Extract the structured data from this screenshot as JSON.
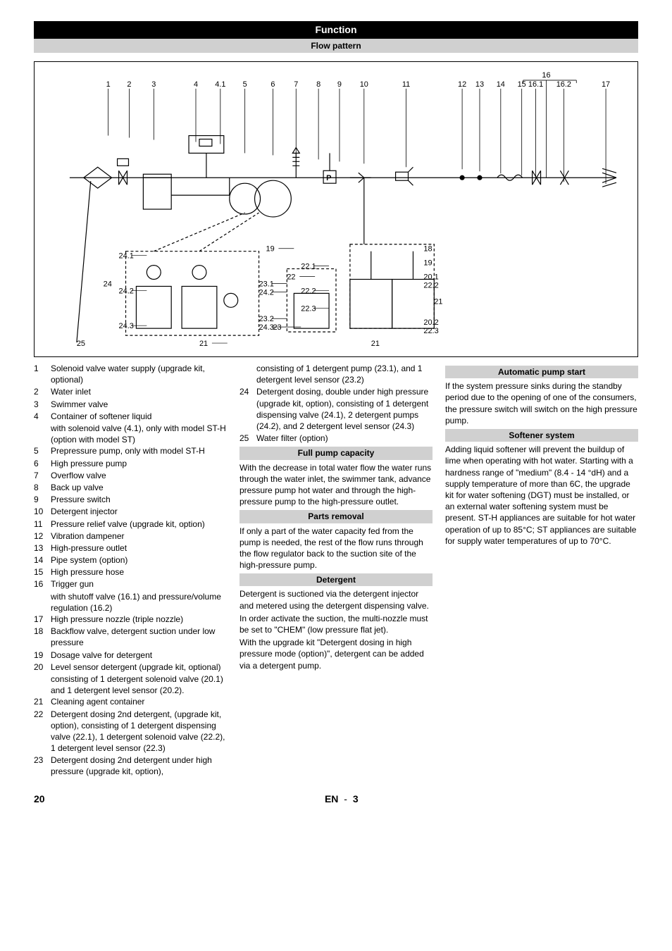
{
  "header": {
    "title": "Function",
    "subtitle": "Flow pattern"
  },
  "diagram": {
    "top_labels": [
      "1",
      "2",
      "3",
      "4",
      "4.1",
      "5",
      "6",
      "7",
      "8",
      "9",
      "10",
      "11",
      "12",
      "13",
      "14",
      "15",
      "16",
      "16.1",
      "16.2",
      "17"
    ],
    "left_labels": [
      "24",
      "24.1",
      "24.2",
      "24.3",
      "25"
    ],
    "mid_labels": [
      "19",
      "21",
      "22",
      "22.1",
      "22.2",
      "22.3",
      "23",
      "23.1",
      "23.2",
      "24.2",
      "24.3"
    ],
    "right_labels": [
      "18",
      "19",
      "20.1",
      "20.2",
      "21",
      "22.2",
      "22.3"
    ],
    "p_box": "P"
  },
  "legend_left": [
    {
      "n": "1",
      "t": "Solenoid valve water supply (upgrade kit, optional)"
    },
    {
      "n": "2",
      "t": "Water inlet"
    },
    {
      "n": "3",
      "t": "Swimmer valve"
    },
    {
      "n": "4",
      "t": "Container of softener liquid",
      "sub": "with solenoid valve (4.1), only with model ST-H (option with model ST)"
    },
    {
      "n": "5",
      "t": "Prepressure pump, only with model ST-H"
    },
    {
      "n": "6",
      "t": "High pressure pump"
    },
    {
      "n": "7",
      "t": "Overflow valve"
    },
    {
      "n": "8",
      "t": "Back up valve"
    },
    {
      "n": "9",
      "t": "Pressure switch"
    },
    {
      "n": "10",
      "t": "Detergent injector"
    },
    {
      "n": "11",
      "t": "Pressure relief valve (upgrade kit, option)"
    },
    {
      "n": "12",
      "t": "Vibration dampener"
    },
    {
      "n": "13",
      "t": "High-pressure outlet"
    },
    {
      "n": "14",
      "t": "Pipe system (option)"
    },
    {
      "n": "15",
      "t": "High pressure hose"
    },
    {
      "n": "16",
      "t": "Trigger gun",
      "sub": "with shutoff valve (16.1) and pressure/volume regulation (16.2)"
    },
    {
      "n": "17",
      "t": "High pressure nozzle (triple nozzle)"
    },
    {
      "n": "18",
      "t": "Backflow valve, detergent suction under low pressure"
    },
    {
      "n": "19",
      "t": "Dosage valve for detergent"
    },
    {
      "n": "20",
      "t": "Level sensor detergent (upgrade kit, optional)",
      "sub": "consisting of 1 detergent solenoid valve (20.1) and 1 detergent level sensor (20.2)."
    },
    {
      "n": "21",
      "t": "Cleaning agent container"
    },
    {
      "n": "22",
      "t": "Detergent dosing 2nd detergent, (upgrade kit, option), consisting of 1 detergent dispensing valve (22.1), 1 detergent solenoid valve (22.2), 1 detergent level sensor (22.3)"
    },
    {
      "n": "23",
      "t": "Detergent dosing 2nd detergent under high pressure (upgrade kit, option),"
    }
  ],
  "legend_mid_top": [
    {
      "n": "",
      "t": "consisting of 1 detergent pump (23.1), and 1 detergent level sensor (23.2)"
    },
    {
      "n": "24",
      "t": "Detergent dosing, double under high pressure (upgrade kit, option), consisting of 1 detergent dispensing valve (24.1), 2 detergent pumps (24.2), and 2 detergent level sensor (24.3)"
    },
    {
      "n": "25",
      "t": "Water filter (option)"
    }
  ],
  "sections_mid": [
    {
      "title": "Full pump capacity",
      "body": "With the decrease in total water flow the water runs through the water inlet, the swimmer tank, advance pressure pump hot water and through the high-pressure pump to the high-pressure outlet."
    },
    {
      "title": "Parts removal",
      "body": "If only a part of the water capacity fed from the pump is needed, the rest of the flow runs through the flow regulator back to the suction site of the high-pressure pump."
    },
    {
      "title": "Detergent",
      "body": "Detergent is suctioned via the detergent injector and metered using the detergent dispensing valve.\nIn order activate the suction, the multi-nozzle must be set to \"CHEM\" (low pressure flat jet).\nWith the upgrade kit \"Detergent dosing in high pressure mode (option)\", detergent can be added via a detergent pump."
    }
  ],
  "sections_right": [
    {
      "title": "Automatic pump start",
      "body": "If the system pressure sinks during the standby period due to the opening of one of the consumers, the pressure switch will switch on the high pressure pump."
    },
    {
      "title": "Softener system",
      "body": "Adding liquid softener will prevent the buildup of lime when operating with hot water. Starting with a hardness range of \"medium\" (8.4 - 14 °dH) and a supply temperature of more than 6C, the upgrade kit for water softening (DGT) must be installed, or an external water softening system must be present. ST-H appliances are suitable for hot water operation of up to 85°C; ST appliances are suitable for supply water temperatures of up to 70°C."
    }
  ],
  "footer": {
    "page": "20",
    "lang": "EN",
    "subpage": "3"
  },
  "style": {
    "title_bg": "#000000",
    "title_fg": "#ffffff",
    "sub_bg": "#d0d0d0",
    "font_size_body": 12,
    "font_size_title": 14
  }
}
